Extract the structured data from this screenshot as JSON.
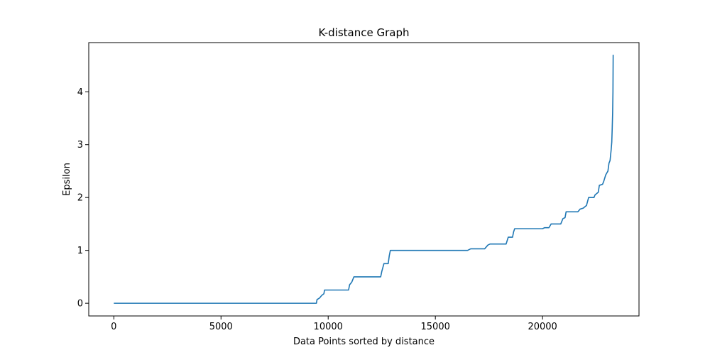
{
  "chart_data": {
    "type": "line",
    "title": "K-distance Graph",
    "xlabel": "Data Points sorted by distance",
    "ylabel": "Epsilon",
    "xlim": [
      -1170,
      24500
    ],
    "ylim": [
      -0.24,
      4.93
    ],
    "xticks": [
      0,
      5000,
      10000,
      15000,
      20000
    ],
    "yticks": [
      0,
      1,
      2,
      3,
      4
    ],
    "grid": false,
    "legend": "none",
    "series": [
      {
        "color": "#1f77b4",
        "points": [
          [
            0,
            0
          ],
          [
            9450,
            0
          ],
          [
            9480,
            0.07
          ],
          [
            9600,
            0.1
          ],
          [
            9700,
            0.15
          ],
          [
            9800,
            0.18
          ],
          [
            9830,
            0.25
          ],
          [
            10950,
            0.25
          ],
          [
            11000,
            0.35
          ],
          [
            11100,
            0.4
          ],
          [
            11200,
            0.5
          ],
          [
            12450,
            0.5
          ],
          [
            12500,
            0.6
          ],
          [
            12600,
            0.75
          ],
          [
            12800,
            0.75
          ],
          [
            12850,
            0.9
          ],
          [
            12900,
            1.0
          ],
          [
            16500,
            1.0
          ],
          [
            16650,
            1.03
          ],
          [
            17300,
            1.03
          ],
          [
            17450,
            1.1
          ],
          [
            17550,
            1.12
          ],
          [
            18300,
            1.12
          ],
          [
            18400,
            1.25
          ],
          [
            18600,
            1.25
          ],
          [
            18650,
            1.35
          ],
          [
            18700,
            1.41
          ],
          [
            20000,
            1.41
          ],
          [
            20100,
            1.43
          ],
          [
            20300,
            1.43
          ],
          [
            20400,
            1.5
          ],
          [
            20850,
            1.5
          ],
          [
            20950,
            1.6
          ],
          [
            21050,
            1.62
          ],
          [
            21100,
            1.73
          ],
          [
            21650,
            1.73
          ],
          [
            21750,
            1.78
          ],
          [
            21900,
            1.8
          ],
          [
            22050,
            1.85
          ],
          [
            22150,
            2.0
          ],
          [
            22400,
            2.0
          ],
          [
            22450,
            2.05
          ],
          [
            22600,
            2.1
          ],
          [
            22650,
            2.23
          ],
          [
            22800,
            2.25
          ],
          [
            22850,
            2.3
          ],
          [
            22950,
            2.43
          ],
          [
            23050,
            2.5
          ],
          [
            23100,
            2.65
          ],
          [
            23150,
            2.7
          ],
          [
            23200,
            2.9
          ],
          [
            23230,
            3.05
          ],
          [
            23250,
            3.3
          ],
          [
            23270,
            3.6
          ],
          [
            23285,
            4.0
          ],
          [
            23295,
            4.7
          ]
        ]
      }
    ]
  }
}
